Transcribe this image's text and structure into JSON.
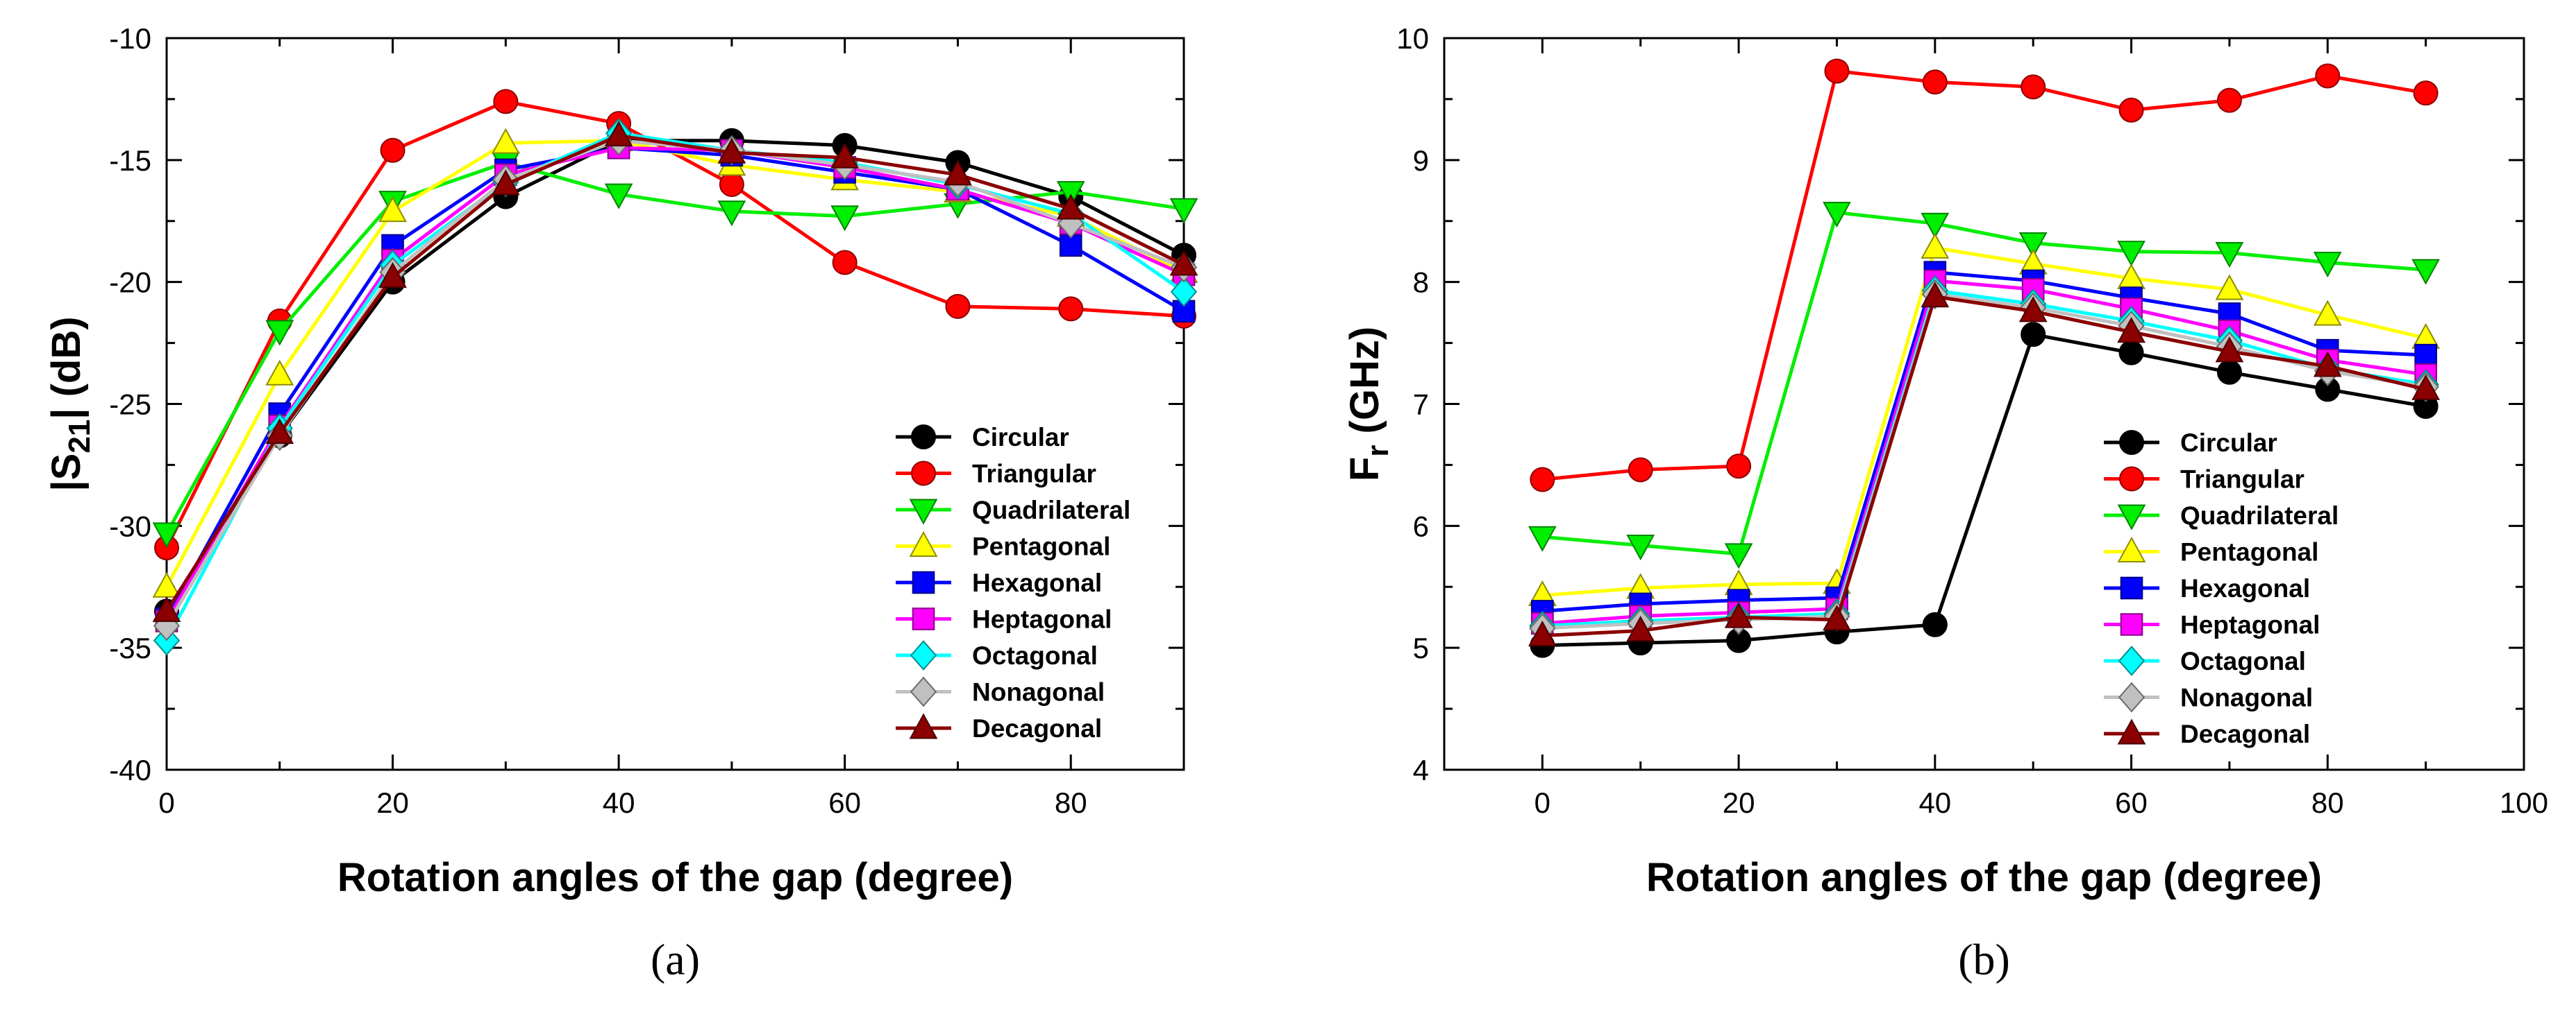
{
  "chart_data": [
    {
      "type": "line",
      "panel_label": "(a)",
      "title": "",
      "xlabel": "Rotation angles of the gap (degree)",
      "ylabel_main": "|S",
      "ylabel_sub": "21",
      "ylabel_rest": "| (dB)",
      "xlim": [
        0,
        90
      ],
      "ylim": [
        -40,
        -10
      ],
      "xticks": [
        0,
        20,
        40,
        60,
        80
      ],
      "xtick_labels": [
        "0",
        "20",
        "40",
        "60",
        "80"
      ],
      "yticks": [
        -40,
        -35,
        -30,
        -25,
        -20,
        -15,
        -10
      ],
      "ytick_labels": [
        "-40",
        "-35",
        "-30",
        "-25",
        "-20",
        "-15",
        "-10"
      ],
      "grid": false,
      "legend_position": "bottom-right",
      "x": [
        0,
        10,
        20,
        30,
        40,
        50,
        60,
        70,
        80,
        90
      ],
      "series": [
        {
          "name": "Circular",
          "marker": "circle",
          "color": "#000000",
          "values": [
            -33.5,
            -26.3,
            -20.0,
            -16.5,
            -14.2,
            -14.2,
            -14.4,
            -15.1,
            -16.5,
            -18.9
          ]
        },
        {
          "name": "Triangular",
          "marker": "circle",
          "color": "#ff0000",
          "values": [
            -30.9,
            -21.6,
            -14.6,
            -12.6,
            -13.5,
            -16.0,
            -19.2,
            -21.0,
            -21.1,
            -21.4
          ]
        },
        {
          "name": "Quadrilateral",
          "marker": "triangle-down",
          "color": "#00ee00",
          "values": [
            -30.3,
            -22.0,
            -16.7,
            -15.1,
            -16.4,
            -17.1,
            -17.3,
            -16.8,
            -16.3,
            -17.0
          ]
        },
        {
          "name": "Pentagonal",
          "marker": "triangle-up",
          "color": "#ffff00",
          "values": [
            -32.5,
            -23.8,
            -17.1,
            -14.3,
            -14.2,
            -15.2,
            -15.8,
            -16.3,
            -17.3,
            -19.6
          ]
        },
        {
          "name": "Hexagonal",
          "marker": "square",
          "color": "#0000ff",
          "values": [
            -33.8,
            -25.4,
            -18.5,
            -15.4,
            -14.5,
            -14.8,
            -15.5,
            -16.2,
            -18.5,
            -21.2
          ]
        },
        {
          "name": "Heptagonal",
          "marker": "square",
          "color": "#ff00ff",
          "values": [
            -33.9,
            -25.9,
            -19.1,
            -15.6,
            -14.5,
            -14.6,
            -15.3,
            -16.2,
            -17.6,
            -19.7
          ]
        },
        {
          "name": "Octagonal",
          "marker": "diamond",
          "color": "#00ffff",
          "values": [
            -34.7,
            -26.0,
            -19.3,
            -15.9,
            -13.9,
            -14.6,
            -15.1,
            -16.0,
            -17.2,
            -20.4
          ]
        },
        {
          "name": "Nonagonal",
          "marker": "diamond",
          "color": "#c0c0c0",
          "values": [
            -34.1,
            -26.3,
            -19.6,
            -15.8,
            -14.2,
            -14.6,
            -15.2,
            -15.9,
            -17.6,
            -19.4
          ]
        },
        {
          "name": "Decagonal",
          "marker": "triangle-up",
          "color": "#8b0000",
          "values": [
            -33.5,
            -26.2,
            -19.8,
            -16.0,
            -14.0,
            -14.7,
            -14.9,
            -15.6,
            -17.0,
            -19.3
          ]
        }
      ]
    },
    {
      "type": "line",
      "panel_label": "(b)",
      "title": "",
      "xlabel": "Rotation angles of the gap (degree)",
      "ylabel_main": "F",
      "ylabel_sub": "r",
      "ylabel_rest": " (GHz)",
      "xlim": [
        -10,
        100
      ],
      "ylim": [
        4,
        10
      ],
      "xticks": [
        0,
        20,
        40,
        60,
        80,
        100
      ],
      "xtick_labels": [
        "0",
        "20",
        "40",
        "60",
        "80",
        "100"
      ],
      "yticks": [
        4,
        5,
        6,
        7,
        8,
        9,
        10
      ],
      "ytick_labels": [
        "4",
        "5",
        "6",
        "7",
        "8",
        "9",
        "10"
      ],
      "grid": false,
      "legend_position": "bottom-right",
      "x": [
        0,
        10,
        20,
        30,
        40,
        50,
        60,
        70,
        80,
        90
      ],
      "series": [
        {
          "name": "Circular",
          "marker": "circle",
          "color": "#000000",
          "values": [
            5.02,
            5.04,
            5.06,
            5.13,
            5.19,
            7.57,
            7.42,
            7.26,
            7.12,
            6.98
          ]
        },
        {
          "name": "Triangular",
          "marker": "circle",
          "color": "#ff0000",
          "values": [
            6.38,
            6.46,
            6.49,
            9.73,
            9.64,
            9.6,
            9.41,
            9.49,
            9.69,
            9.55
          ]
        },
        {
          "name": "Quadrilateral",
          "marker": "triangle-down",
          "color": "#00ee00",
          "values": [
            5.91,
            5.84,
            5.77,
            8.57,
            8.48,
            8.32,
            8.25,
            8.24,
            8.16,
            8.1
          ]
        },
        {
          "name": "Pentagonal",
          "marker": "triangle-up",
          "color": "#ffff00",
          "values": [
            5.43,
            5.49,
            5.52,
            5.53,
            8.28,
            8.15,
            8.03,
            7.94,
            7.73,
            7.54
          ]
        },
        {
          "name": "Hexagonal",
          "marker": "square",
          "color": "#0000ff",
          "values": [
            5.3,
            5.36,
            5.39,
            5.41,
            8.08,
            8.01,
            7.87,
            7.74,
            7.44,
            7.4
          ]
        },
        {
          "name": "Heptagonal",
          "marker": "square",
          "color": "#ff00ff",
          "values": [
            5.2,
            5.26,
            5.29,
            5.32,
            8.01,
            7.94,
            7.78,
            7.6,
            7.36,
            7.24
          ]
        },
        {
          "name": "Octagonal",
          "marker": "diamond",
          "color": "#00ffff",
          "values": [
            5.18,
            5.22,
            5.25,
            5.28,
            7.93,
            7.82,
            7.68,
            7.52,
            7.29,
            7.16
          ]
        },
        {
          "name": "Nonagonal",
          "marker": "diamond",
          "color": "#c0c0c0",
          "values": [
            5.16,
            5.2,
            5.23,
            5.26,
            7.9,
            7.79,
            7.64,
            7.47,
            7.27,
            7.14
          ]
        },
        {
          "name": "Decagonal",
          "marker": "triangle-up",
          "color": "#8b0000",
          "values": [
            5.1,
            5.14,
            5.25,
            5.23,
            7.88,
            7.76,
            7.59,
            7.43,
            7.31,
            7.12
          ]
        }
      ]
    }
  ]
}
